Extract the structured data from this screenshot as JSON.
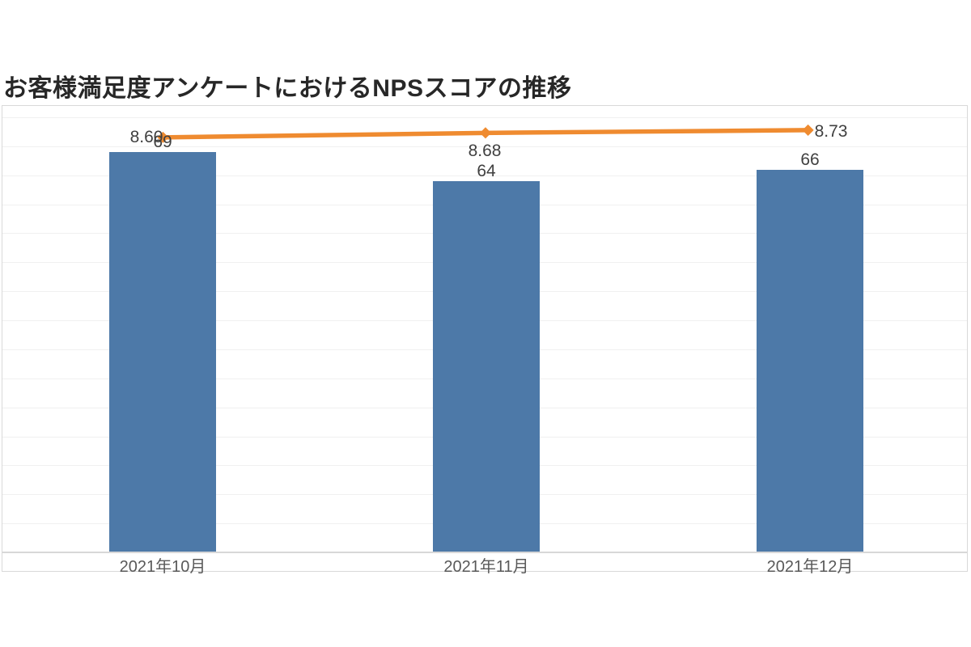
{
  "title": "お客様満足度アンケートにおけるNPSスコアの推移",
  "colors": {
    "background": "#ffffff",
    "title_text": "#272727",
    "bar_fill": "#4d79a8",
    "line_stroke": "#ef8b30",
    "data_label_text": "#404040",
    "axis_label_text": "#595959",
    "gridline": "#f0f0f0",
    "frame_border": "#d9d9d9",
    "axis_line": "#d8d8d8"
  },
  "chart_data": {
    "type": "bar",
    "subtype": "combo-bar-line",
    "title": "お客様満足度アンケートにおけるNPSスコアの推移",
    "categories": [
      "2021年10月",
      "2021年11月",
      "2021年12月"
    ],
    "series": [
      {
        "name": "bar-series",
        "type": "bar",
        "values": [
          69,
          64,
          66
        ],
        "data_labels": [
          "69",
          "64",
          "66"
        ],
        "color": "#4d79a8"
      },
      {
        "name": "line-series",
        "type": "line",
        "values": [
          8.6,
          8.68,
          8.73
        ],
        "data_labels": [
          "8.60",
          "8.68",
          "8.73"
        ],
        "color": "#ef8b30",
        "marker": "diamond"
      }
    ],
    "xlabel": "",
    "ylabel": "",
    "y_axis": {
      "min": 0,
      "estimated_max": 77,
      "gridline_step": 5,
      "tick_labels_visible": false,
      "grid": true
    },
    "secondary_axis_visible": false,
    "legend": "none",
    "data_labels_visible": true
  }
}
